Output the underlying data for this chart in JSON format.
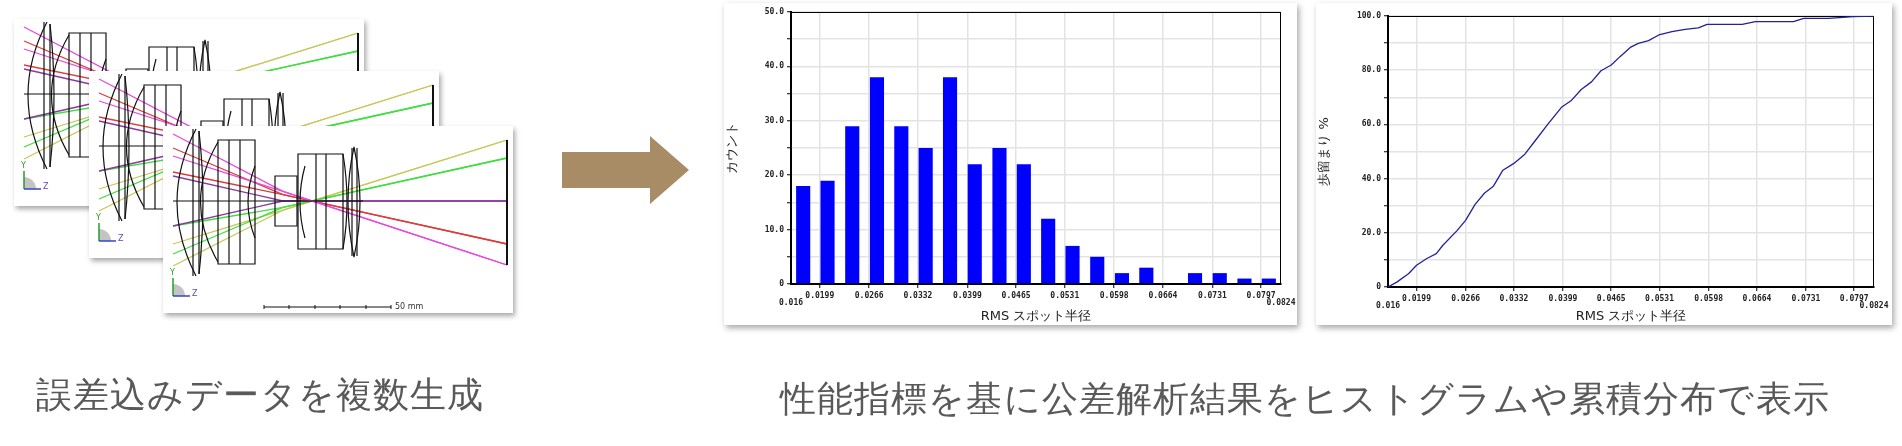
{
  "chart_data": [
    {
      "type": "other",
      "annotations": [
        "Y",
        "Z",
        "50 mm",
        "誤差込みデータを複数生成"
      ]
    },
    {
      "type": "histogram",
      "bins": [
        0.016,
        0.0193,
        0.0226,
        0.026,
        0.0293,
        0.0326,
        0.0359,
        0.0392,
        0.0426,
        0.0459,
        0.0492,
        0.0525,
        0.0558,
        0.0592,
        0.0625,
        0.0658,
        0.0691,
        0.0724,
        0.0758,
        0.0791,
        0.0824
      ],
      "values": [
        18,
        19,
        29,
        38,
        29,
        25,
        38,
        22,
        25,
        22,
        12,
        7,
        5,
        2,
        3,
        0,
        2,
        2,
        1,
        1
      ],
      "color": "#0000ff",
      "xlabel": "RMS スポット半径",
      "ylabel": "カウント",
      "xlim": [
        0.016,
        0.0824
      ],
      "xticks": [
        0.0199,
        0.0266,
        0.0332,
        0.0399,
        0.0465,
        0.0531,
        0.0598,
        0.0664,
        0.0731,
        0.0797
      ],
      "ylim": [
        0,
        50
      ],
      "yticks": [
        0,
        {
          "value": 5,
          "label": null
        },
        {
          "value": 10,
          "label": "10.0"
        },
        {
          "value": 15,
          "label": null
        },
        {
          "value": 20,
          "label": "20.0"
        },
        {
          "value": 25,
          "label": null
        },
        {
          "value": 30,
          "label": "30.0"
        },
        {
          "value": 35,
          "label": null
        },
        {
          "value": 40,
          "label": "40.0"
        },
        {
          "value": 45,
          "label": null
        },
        {
          "value": 50,
          "label": "50.0"
        }
      ],
      "grid": true,
      "annotations": [
        "性能指標を基に公差解析結果をヒストグラムや累積分布で表示",
        "0.016",
        "0.0824"
      ]
    },
    {
      "type": "line",
      "x": [
        0.016,
        0.0172,
        0.0188,
        0.0199,
        0.0213,
        0.0226,
        0.0235,
        0.0254,
        0.0266,
        0.0279,
        0.0292,
        0.0304,
        0.0317,
        0.0332,
        0.0347,
        0.036,
        0.0379,
        0.0397,
        0.041,
        0.0424,
        0.0438,
        0.0451,
        0.0465,
        0.0477,
        0.0491,
        0.0502,
        0.0516,
        0.053,
        0.0548,
        0.0566,
        0.0584,
        0.0596,
        0.0644,
        0.0662,
        0.0714,
        0.0728,
        0.0762,
        0.0796,
        0.0824
      ],
      "values": [
        0,
        1.8,
        4.9,
        8,
        10.5,
        12.3,
        15.4,
        20.7,
        24.6,
        30.5,
        34.7,
        37.2,
        43.1,
        45.6,
        49,
        53.6,
        60.3,
        66.3,
        68.7,
        72.9,
        75.7,
        79.8,
        81.9,
        85,
        88.4,
        89.9,
        90.9,
        93,
        94.2,
        95.1,
        95.6,
        96.9,
        96.9,
        97.9,
        97.9,
        99.1,
        99.1,
        99.8,
        100
      ],
      "color": "#22229a",
      "marker": "none",
      "xlabel": "RMS スポット半径",
      "ylabel": "歩留まり %",
      "xlim": [
        0.016,
        0.0824
      ],
      "xticks": [
        0.0199,
        0.0266,
        0.0332,
        0.0399,
        0.0465,
        0.0531,
        0.0598,
        0.0664,
        0.0731,
        0.0797
      ],
      "ylim": [
        0,
        100
      ],
      "yticks": [
        0,
        {
          "value": 10,
          "label": null
        },
        {
          "value": 20,
          "label": "20.0"
        },
        {
          "value": 30,
          "label": null
        },
        {
          "value": 40,
          "label": "40.0"
        },
        {
          "value": 50,
          "label": null
        },
        {
          "value": 60,
          "label": "60.0"
        },
        {
          "value": 70,
          "label": null
        },
        {
          "value": 80,
          "label": "80.0"
        },
        {
          "value": 90,
          "label": null
        },
        {
          "value": 100,
          "label": "100.0"
        }
      ],
      "grid": true,
      "annotations": [
        "0.016",
        "0.0824"
      ]
    }
  ]
}
